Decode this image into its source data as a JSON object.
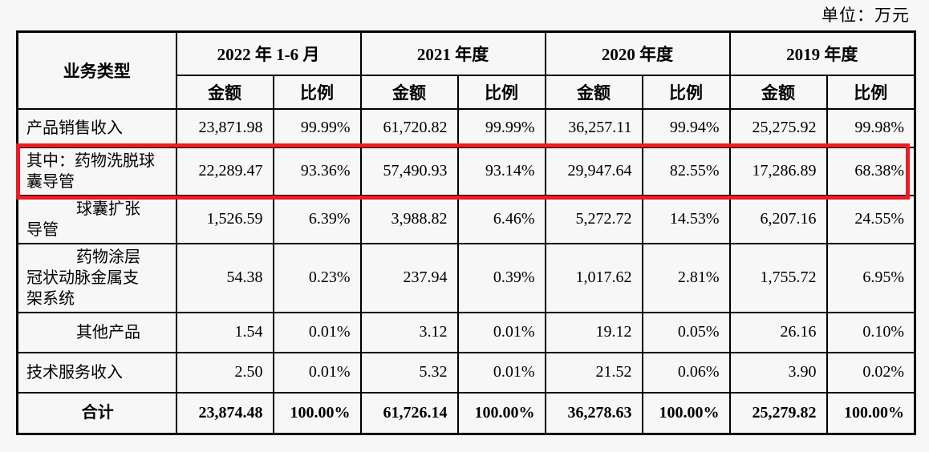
{
  "unit_note": "单位：万元",
  "highlight_color": "#ed1c24",
  "table": {
    "business_type_label": "业务类型",
    "periods": [
      {
        "label": "2022 年 1-6 月"
      },
      {
        "label": "2021 年度"
      },
      {
        "label": "2020 年度"
      },
      {
        "label": "2019 年度"
      }
    ],
    "sub_headers": {
      "amount": "金额",
      "ratio": "比例"
    },
    "rows": [
      {
        "label": "产品销售收入",
        "values": [
          "23,871.98",
          "99.99%",
          "61,720.82",
          "99.99%",
          "36,257.11",
          "99.94%",
          "25,275.92",
          "99.98%"
        ]
      },
      {
        "label": "其中：药物洗脱球\n囊导管",
        "highlighted": true,
        "values": [
          "22,289.47",
          "93.36%",
          "57,490.93",
          "93.14%",
          "29,947.64",
          "82.55%",
          "17,286.89",
          "68.38%"
        ]
      },
      {
        "label": "球囊扩张\n导管",
        "values": [
          "1,526.59",
          "6.39%",
          "3,988.82",
          "6.46%",
          "5,272.72",
          "14.53%",
          "6,207.16",
          "24.55%"
        ]
      },
      {
        "label": "药物涂层\n冠状动脉金属支\n架系统",
        "values": [
          "54.38",
          "0.23%",
          "237.94",
          "0.39%",
          "1,017.62",
          "2.81%",
          "1,755.72",
          "6.95%"
        ]
      },
      {
        "label": "其他产品",
        "values": [
          "1.54",
          "0.01%",
          "3.12",
          "0.01%",
          "19.12",
          "0.05%",
          "26.16",
          "0.10%"
        ]
      },
      {
        "label": "技术服务收入",
        "values": [
          "2.50",
          "0.01%",
          "5.32",
          "0.01%",
          "21.52",
          "0.06%",
          "3.90",
          "0.02%"
        ]
      },
      {
        "label": "合计",
        "is_total": true,
        "values": [
          "23,874.48",
          "100.00%",
          "61,726.14",
          "100.00%",
          "36,278.63",
          "100.00%",
          "25,279.82",
          "100.00%"
        ]
      }
    ]
  }
}
